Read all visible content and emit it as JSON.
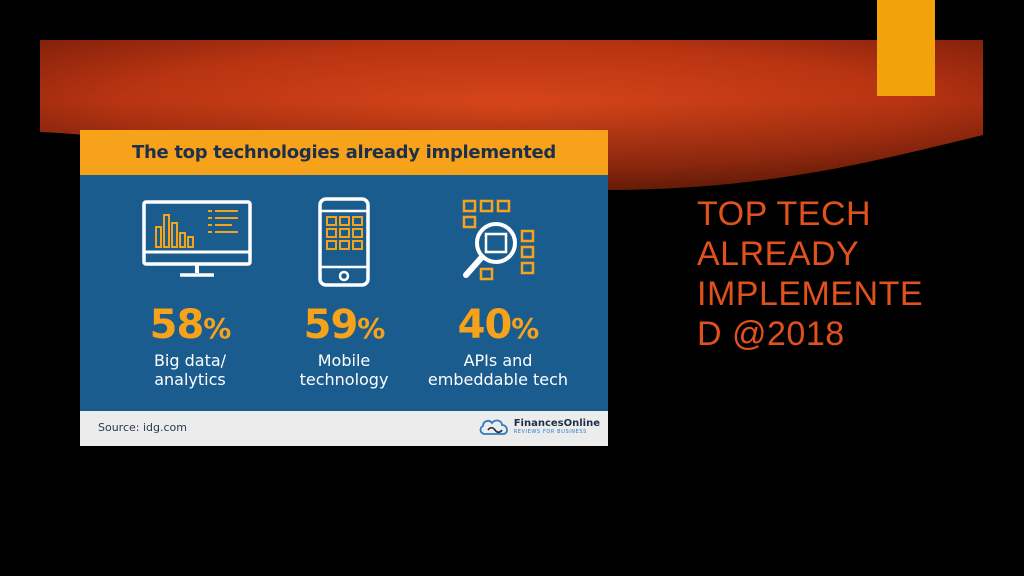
{
  "slide": {
    "title_lines": [
      "TOP TECH",
      "ALREADY",
      "IMPLEMENTE",
      "D @2018"
    ]
  },
  "infographic": {
    "header": "The top technologies already implemented",
    "stats": [
      {
        "value": "58",
        "unit": "%",
        "label_line1": "Big data/",
        "label_line2": "analytics",
        "icon": "monitor-chart-icon"
      },
      {
        "value": "59",
        "unit": "%",
        "label_line1": "Mobile",
        "label_line2": "technology",
        "icon": "smartphone-icon"
      },
      {
        "value": "40",
        "unit": "%",
        "label_line1": "APIs and",
        "label_line2": "embeddable tech",
        "icon": "api-magnifier-icon"
      }
    ],
    "source": "Source: idg.com",
    "brand_name": "FinancesOnline",
    "brand_tagline": "REVIEWS FOR BUSINESS",
    "brand_icon": "cloud-logo-icon"
  },
  "colors": {
    "background": "#000000",
    "band_red": "#c43a12",
    "accent_tab": "#f2a20a",
    "infographic_blue": "#1b5c8f",
    "infographic_orange": "#f7a21b",
    "title_orange": "#e0511e"
  }
}
